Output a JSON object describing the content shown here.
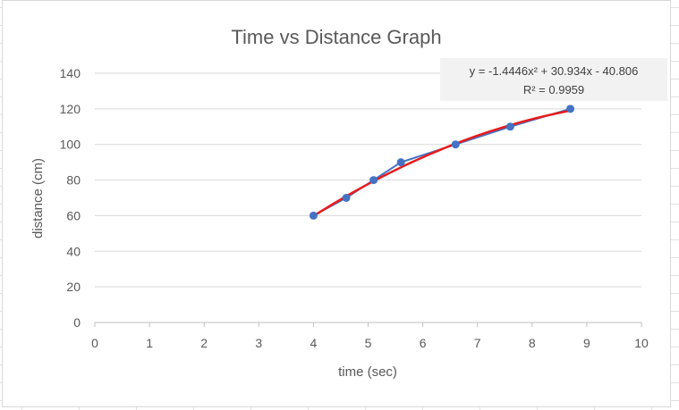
{
  "chart_data": {
    "type": "scatter",
    "title": "Time vs Distance Graph",
    "xlabel": "time (sec)",
    "ylabel": "distance (cm)",
    "xlim": [
      0,
      10
    ],
    "ylim": [
      0,
      140
    ],
    "x_ticks": [
      0,
      1,
      2,
      3,
      4,
      5,
      6,
      7,
      8,
      9,
      10
    ],
    "y_ticks": [
      0,
      20,
      40,
      60,
      80,
      100,
      120,
      140
    ],
    "grid": true,
    "series": [
      {
        "x": [
          4.0,
          4.6,
          5.1,
          5.6,
          6.6,
          7.6,
          8.7
        ],
        "y": [
          60,
          70,
          80,
          90,
          100,
          110,
          120
        ],
        "color": "#4472c4",
        "marker": "circle",
        "line": "straight"
      }
    ],
    "trendline": {
      "type": "polynomial",
      "order": 2,
      "coefficients": [
        -1.4446,
        30.934,
        -40.806
      ],
      "x_range": [
        4.0,
        8.7
      ],
      "color": "#e81c1c",
      "equation": "y = -1.4446x² + 30.934x - 40.806",
      "r_squared": "R² = 0.9959"
    }
  }
}
